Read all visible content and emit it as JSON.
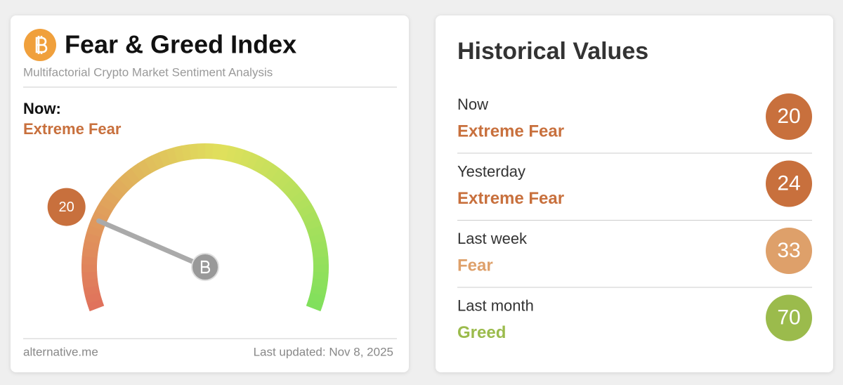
{
  "gauge_card": {
    "title": "Fear & Greed Index",
    "subtitle": "Multifactorial Crypto Market Sentiment Analysis",
    "now_label": "Now:",
    "classification": "Extreme Fear",
    "value": 20,
    "range": [
      0,
      100
    ],
    "color": "#c8703d",
    "source": "alternative.me",
    "updated": "Last updated: Nov 8, 2025"
  },
  "history": {
    "title": "Historical Values",
    "rows": [
      {
        "period": "Now",
        "classification": "Extreme Fear",
        "value": 20,
        "color": "#c8703d"
      },
      {
        "period": "Yesterday",
        "classification": "Extreme Fear",
        "value": 24,
        "color": "#c8703d"
      },
      {
        "period": "Last week",
        "classification": "Fear",
        "value": 33,
        "color": "#dea06a"
      },
      {
        "period": "Last month",
        "classification": "Greed",
        "value": 70,
        "color": "#9bbb4c"
      }
    ]
  }
}
